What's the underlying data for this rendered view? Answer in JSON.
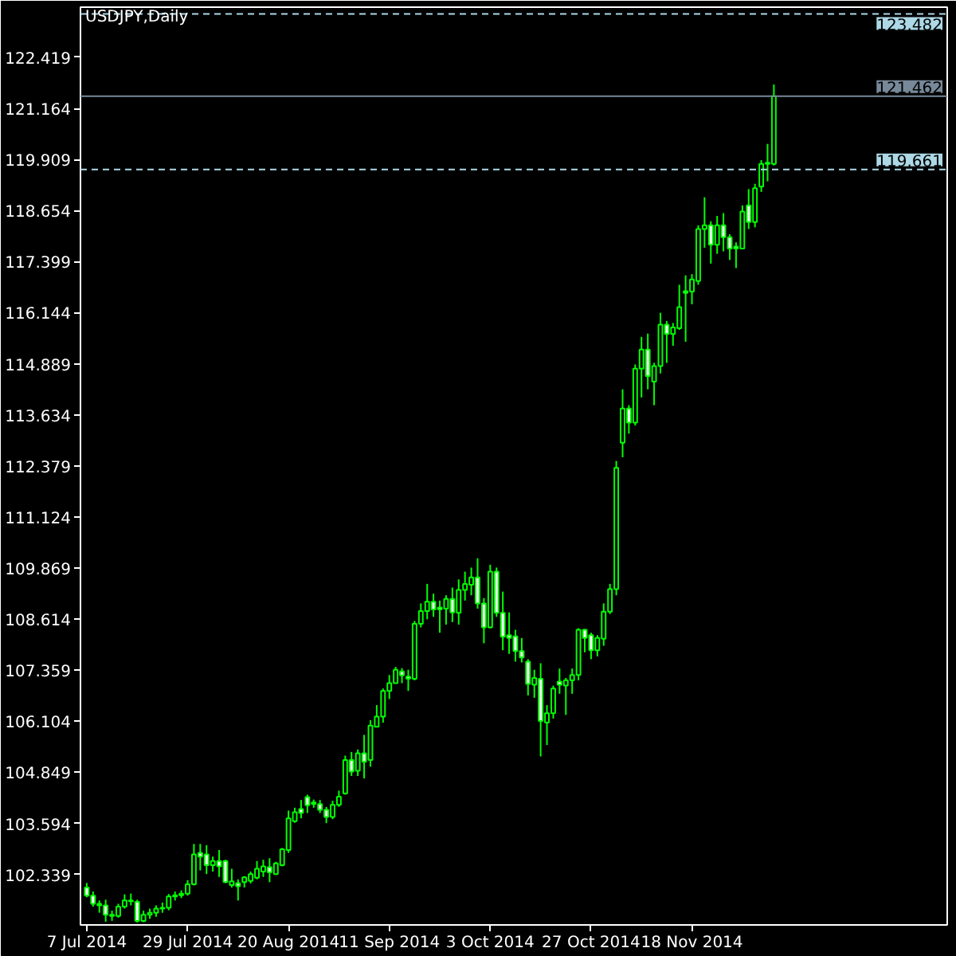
{
  "chart_data": {
    "type": "candlestick",
    "title": "USDJPY,Daily",
    "categories": [
      "7 Jul 2014",
      null,
      null,
      null,
      null,
      null,
      null,
      null,
      null,
      null,
      null,
      null,
      null,
      null,
      null,
      null,
      "29 Jul 2014",
      null,
      null,
      null,
      null,
      null,
      null,
      null,
      null,
      null,
      null,
      null,
      null,
      null,
      null,
      null,
      "20 Aug 2014",
      null,
      null,
      null,
      null,
      null,
      null,
      null,
      null,
      null,
      null,
      null,
      null,
      null,
      null,
      null,
      "11 Sep 2014",
      null,
      null,
      null,
      null,
      null,
      null,
      null,
      null,
      null,
      null,
      null,
      null,
      null,
      null,
      null,
      "3 Oct 2014",
      null,
      null,
      null,
      null,
      null,
      null,
      null,
      null,
      null,
      null,
      null,
      null,
      null,
      null,
      null,
      "27 Oct 2014",
      null,
      null,
      null,
      null,
      null,
      null,
      null,
      null,
      null,
      null,
      null,
      null,
      null,
      null,
      null,
      "18 Nov 2014",
      null,
      null,
      null,
      null,
      null,
      null,
      null,
      null,
      null,
      null,
      null,
      null,
      null
    ],
    "ohlc": [
      [
        102.02,
        102.13,
        101.78,
        101.82
      ],
      [
        101.82,
        101.92,
        101.55,
        101.62
      ],
      [
        101.62,
        101.7,
        101.4,
        101.58
      ],
      [
        101.58,
        101.72,
        101.18,
        101.35
      ],
      [
        101.35,
        101.45,
        101.2,
        101.32
      ],
      [
        101.32,
        101.62,
        101.28,
        101.55
      ],
      [
        101.55,
        101.85,
        101.5,
        101.7
      ],
      [
        101.7,
        101.87,
        101.58,
        101.68
      ],
      [
        101.67,
        101.72,
        101.16,
        101.2
      ],
      [
        101.2,
        101.45,
        101.17,
        101.35
      ],
      [
        101.35,
        101.5,
        101.25,
        101.4
      ],
      [
        101.4,
        101.58,
        101.3,
        101.5
      ],
      [
        101.5,
        101.65,
        101.4,
        101.52
      ],
      [
        101.52,
        101.86,
        101.46,
        101.8
      ],
      [
        101.8,
        101.92,
        101.7,
        101.83
      ],
      [
        101.83,
        101.95,
        101.76,
        101.87
      ],
      [
        101.87,
        102.2,
        101.82,
        102.1
      ],
      [
        102.1,
        103.09,
        102.07,
        102.83
      ],
      [
        102.87,
        103.09,
        102.44,
        102.78
      ],
      [
        102.83,
        103.06,
        102.35,
        102.57
      ],
      [
        102.57,
        102.78,
        102.41,
        102.67
      ],
      [
        102.67,
        102.94,
        102.28,
        102.54
      ],
      [
        102.67,
        102.7,
        102.13,
        102.15
      ],
      [
        102.08,
        102.48,
        102.02,
        102.17
      ],
      [
        102.13,
        102.22,
        101.7,
        102.05
      ],
      [
        102.15,
        102.3,
        102.02,
        102.27
      ],
      [
        102.18,
        102.41,
        102.12,
        102.35
      ],
      [
        102.26,
        102.67,
        102.22,
        102.48
      ],
      [
        102.41,
        102.7,
        102.28,
        102.54
      ],
      [
        102.52,
        102.74,
        102.15,
        102.39
      ],
      [
        102.35,
        102.65,
        102.33,
        102.61
      ],
      [
        102.57,
        102.99,
        102.54,
        102.96
      ],
      [
        102.94,
        103.91,
        102.87,
        103.72
      ],
      [
        103.65,
        103.98,
        103.61,
        103.87
      ],
      [
        103.95,
        104.17,
        103.72,
        103.85
      ],
      [
        104.24,
        104.3,
        103.85,
        104.04
      ],
      [
        104.11,
        104.18,
        103.98,
        104.07
      ],
      [
        104.07,
        104.17,
        103.85,
        103.93
      ],
      [
        103.93,
        104.0,
        103.6,
        103.75
      ],
      [
        103.75,
        104.15,
        103.7,
        104.05
      ],
      [
        104.05,
        104.4,
        104.0,
        104.25
      ],
      [
        104.33,
        105.26,
        104.3,
        105.15
      ],
      [
        105.15,
        105.35,
        104.76,
        104.87
      ],
      [
        104.89,
        105.41,
        104.76,
        105.32
      ],
      [
        105.32,
        105.77,
        104.7,
        105.11
      ],
      [
        105.15,
        106.13,
        104.99,
        106.0
      ],
      [
        105.97,
        106.5,
        105.97,
        106.22
      ],
      [
        106.22,
        106.91,
        106.07,
        106.85
      ],
      [
        106.85,
        107.24,
        106.65,
        107.04
      ],
      [
        107.04,
        107.44,
        107.04,
        107.37
      ],
      [
        107.33,
        107.41,
        107.04,
        107.23
      ],
      [
        107.2,
        107.37,
        106.85,
        107.15
      ],
      [
        107.15,
        108.57,
        107.11,
        108.5
      ],
      [
        108.5,
        109.0,
        108.41,
        108.81
      ],
      [
        108.81,
        109.48,
        108.61,
        109.04
      ],
      [
        109.04,
        109.24,
        108.67,
        108.85
      ],
      [
        108.9,
        109.07,
        108.28,
        108.85
      ],
      [
        108.87,
        109.2,
        108.48,
        109.11
      ],
      [
        109.11,
        109.39,
        108.54,
        108.78
      ],
      [
        108.77,
        109.59,
        108.48,
        109.33
      ],
      [
        109.33,
        109.78,
        109.07,
        109.48
      ],
      [
        109.46,
        109.88,
        109.2,
        109.64
      ],
      [
        109.64,
        110.11,
        108.87,
        109.0
      ],
      [
        109.0,
        109.13,
        108.02,
        108.41
      ],
      [
        108.41,
        109.95,
        108.39,
        109.78
      ],
      [
        109.78,
        109.88,
        108.67,
        108.77
      ],
      [
        108.77,
        109.29,
        107.85,
        108.18
      ],
      [
        108.22,
        108.78,
        107.76,
        108.15
      ],
      [
        108.19,
        108.35,
        107.57,
        107.83
      ],
      [
        107.83,
        108.15,
        107.55,
        107.67
      ],
      [
        107.57,
        107.63,
        106.74,
        107.02
      ],
      [
        107.0,
        107.37,
        106.68,
        107.17
      ],
      [
        107.15,
        107.53,
        105.24,
        106.11
      ],
      [
        106.07,
        106.5,
        105.52,
        106.3
      ],
      [
        106.3,
        106.98,
        106.17,
        106.91
      ],
      [
        107.08,
        107.4,
        106.78,
        107.0
      ],
      [
        106.98,
        107.17,
        106.26,
        107.11
      ],
      [
        107.11,
        107.4,
        106.78,
        107.24
      ],
      [
        107.24,
        108.39,
        107.11,
        108.35
      ],
      [
        108.35,
        108.37,
        107.8,
        108.15
      ],
      [
        108.22,
        108.28,
        107.63,
        107.85
      ],
      [
        107.85,
        108.22,
        107.7,
        108.15
      ],
      [
        108.13,
        109.0,
        107.96,
        108.8
      ],
      [
        108.8,
        109.48,
        108.74,
        109.35
      ],
      [
        109.35,
        112.5,
        109.2,
        112.33
      ],
      [
        112.95,
        114.26,
        112.59,
        113.79
      ],
      [
        113.79,
        113.87,
        113.17,
        113.44
      ],
      [
        113.44,
        114.87,
        113.37,
        114.77
      ],
      [
        114.77,
        115.55,
        114.06,
        115.24
      ],
      [
        115.24,
        115.63,
        114.26,
        114.58
      ],
      [
        114.45,
        114.91,
        113.87,
        114.83
      ],
      [
        114.83,
        116.14,
        114.65,
        115.85
      ],
      [
        115.85,
        115.94,
        114.91,
        115.62
      ],
      [
        115.62,
        115.89,
        115.33,
        115.78
      ],
      [
        115.76,
        116.83,
        115.72,
        116.28
      ],
      [
        116.67,
        117.06,
        115.43,
        116.63
      ],
      [
        116.66,
        117.09,
        116.35,
        116.96
      ],
      [
        116.92,
        118.29,
        116.83,
        118.2
      ],
      [
        118.2,
        118.98,
        117.74,
        118.29
      ],
      [
        118.29,
        118.39,
        117.35,
        117.81
      ],
      [
        117.81,
        118.52,
        117.59,
        118.29
      ],
      [
        118.29,
        118.59,
        117.65,
        118.0
      ],
      [
        118.0,
        118.07,
        117.44,
        117.72
      ],
      [
        117.77,
        117.87,
        117.24,
        117.72
      ],
      [
        117.72,
        118.78,
        117.7,
        118.63
      ],
      [
        118.78,
        119.18,
        118.2,
        118.37
      ],
      [
        118.37,
        119.31,
        118.24,
        119.2
      ],
      [
        119.24,
        119.89,
        119.11,
        119.8
      ],
      [
        119.8,
        120.29,
        119.37,
        119.83
      ],
      [
        119.8,
        121.75,
        119.76,
        121.462
      ]
    ],
    "color": "#00ff00",
    "colors": [
      "#ffffff",
      "#ffffff",
      "#ffffff",
      "#ffffff",
      "#ffffff",
      "#000000",
      "#000000",
      "#ffffff",
      "#ffffff",
      "#000000",
      "#000000",
      "#000000",
      "#000000",
      "#000000",
      "#000000",
      "#000000",
      "#000000",
      "#000000",
      "#ffffff",
      "#ffffff",
      "#000000",
      "#ffffff",
      "#ffffff",
      "#000000",
      "#ffffff",
      "#000000",
      "#000000",
      "#000000",
      "#000000",
      "#ffffff",
      "#000000",
      "#000000",
      "#000000",
      "#000000",
      "#ffffff",
      "#ffffff",
      "#ffffff",
      "#ffffff",
      "#ffffff",
      "#000000",
      "#000000",
      "#000000",
      "#ffffff",
      "#000000",
      "#ffffff",
      "#000000",
      "#000000",
      "#000000",
      "#000000",
      "#000000",
      "#ffffff",
      "#ffffff",
      "#000000",
      "#000000",
      "#000000",
      "#ffffff",
      "#ffffff",
      "#000000",
      "#ffffff",
      "#000000",
      "#000000",
      "#000000",
      "#ffffff",
      "#ffffff",
      "#000000",
      "#ffffff",
      "#ffffff",
      "#ffffff",
      "#ffffff",
      "#ffffff",
      "#ffffff",
      "#000000",
      "#ffffff",
      "#000000",
      "#000000",
      "#ffffff",
      "#000000",
      "#000000",
      "#000000",
      "#ffffff",
      "#ffffff",
      "#000000",
      "#000000",
      "#000000",
      "#000000",
      "#000000",
      "#ffffff",
      "#000000",
      "#000000",
      "#ffffff",
      "#000000",
      "#000000",
      "#ffffff",
      "#000000",
      "#000000",
      "#ffffff",
      "#000000",
      "#000000",
      "#000000",
      "#ffffff",
      "#000000",
      "#ffffff",
      "#ffffff",
      "#ffffff",
      "#000000",
      "#ffffff",
      "#000000",
      "#000000",
      "#000000",
      "#000000"
    ],
    "ylim": [
      101.1,
      123.65
    ],
    "yticks": [
      102.339,
      103.594,
      104.849,
      106.104,
      107.359,
      108.614,
      109.869,
      111.124,
      112.379,
      113.634,
      114.889,
      116.144,
      117.399,
      118.654,
      119.909,
      121.164,
      122.419
    ],
    "ref_lines": [
      {
        "axis": "y",
        "value": 123.482,
        "label": "123.482",
        "color": "#add8e6",
        "line_style": "dashed"
      },
      {
        "axis": "y",
        "value": 121.462,
        "label": "121.462",
        "color": "#778899",
        "line_style": "solid"
      },
      {
        "axis": "y",
        "value": 119.661,
        "label": "119.661",
        "color": "#add8e6",
        "line_style": "dashed"
      }
    ]
  }
}
